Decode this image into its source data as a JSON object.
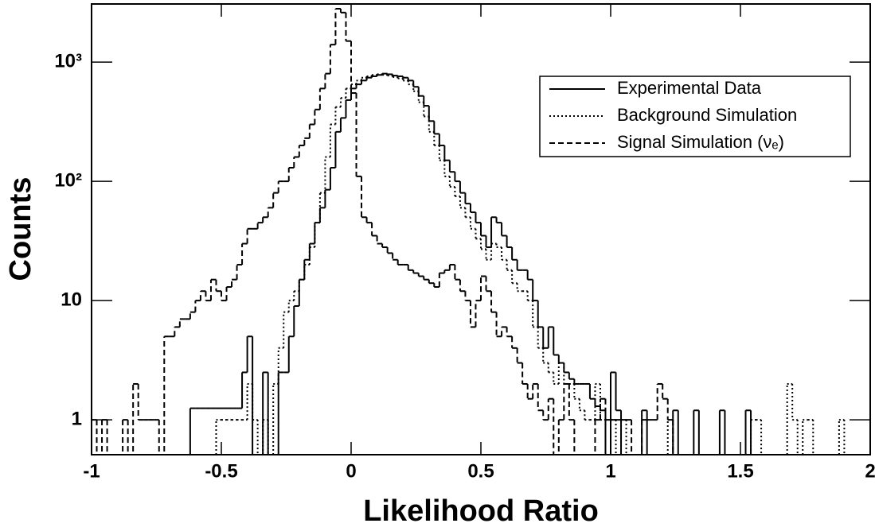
{
  "chart_data": {
    "type": "histogram",
    "xlabel": "Likelihood Ratio",
    "ylabel": "Counts",
    "log_y": true,
    "legend": "upper right",
    "xlim": [
      -1,
      2
    ],
    "ylim": [
      0.51,
      3070
    ],
    "xticks": [
      -1,
      -0.5,
      0,
      0.5,
      1,
      1.5,
      2
    ],
    "yticks": [
      1,
      10,
      {
        "value": 100,
        "label": "10²"
      },
      {
        "value": 1000,
        "label": "10³"
      }
    ],
    "bins": [
      -1,
      -0.98,
      -0.96,
      -0.94,
      -0.92,
      -0.9,
      -0.88,
      -0.86,
      -0.84,
      -0.82,
      -0.8,
      -0.78,
      -0.76,
      -0.74,
      -0.72,
      -0.7,
      -0.68,
      -0.66,
      -0.64,
      -0.62,
      -0.6,
      -0.58,
      -0.56,
      -0.54,
      -0.52,
      -0.5,
      -0.48,
      -0.46,
      -0.44,
      -0.42,
      -0.4,
      -0.38,
      -0.36,
      -0.34,
      -0.32,
      -0.3,
      -0.28,
      -0.26,
      -0.24,
      -0.22,
      -0.2,
      -0.18,
      -0.16,
      -0.14,
      -0.12,
      -0.1,
      -0.08,
      -0.06,
      -0.04,
      -0.02,
      0,
      0.02,
      0.04,
      0.06,
      0.08,
      0.1,
      0.12,
      0.14,
      0.16,
      0.18,
      0.2,
      0.22,
      0.24,
      0.26,
      0.28,
      0.3,
      0.32,
      0.34,
      0.36,
      0.38,
      0.4,
      0.42,
      0.44,
      0.46,
      0.48,
      0.5,
      0.52,
      0.54,
      0.56,
      0.58,
      0.6,
      0.62,
      0.64,
      0.66,
      0.68,
      0.7,
      0.72,
      0.74,
      0.76,
      0.78,
      0.8,
      0.82,
      0.84,
      0.86,
      0.88,
      0.9,
      0.92,
      0.94,
      0.96,
      0.98,
      1,
      1.02,
      1.04,
      1.06,
      1.08,
      1.1,
      1.12,
      1.14,
      1.16,
      1.18,
      1.2,
      1.22,
      1.24,
      1.26,
      1.28,
      1.3,
      1.32,
      1.34,
      1.36,
      1.38,
      1.4,
      1.42,
      1.44,
      1.46,
      1.48,
      1.5,
      1.52,
      1.54,
      1.56,
      1.58,
      1.6,
      1.62,
      1.64,
      1.66,
      1.68,
      1.7,
      1.72,
      1.74,
      1.76,
      1.78,
      1.8,
      1.82,
      1.84,
      1.86,
      1.88,
      1.9,
      1.92,
      1.94,
      1.96,
      1.98,
      2
    ],
    "series": [
      {
        "name": "Experimental Data",
        "color": "#000000",
        "linestyle": "solid",
        "values": [
          0,
          0,
          0,
          0,
          0,
          0,
          0,
          0,
          0,
          0,
          0,
          0,
          0,
          0,
          0,
          0,
          0,
          0,
          0,
          1.25,
          1.25,
          1.25,
          1.25,
          1.25,
          1.25,
          1.25,
          1.25,
          1.25,
          1.25,
          2.5,
          5,
          0,
          0,
          2.5,
          0,
          0,
          2.5,
          2.5,
          5,
          9,
          15,
          22,
          30,
          45,
          60,
          85,
          130,
          260,
          340,
          480,
          600,
          650,
          700,
          740,
          760,
          780,
          800,
          790,
          770,
          760,
          740,
          700,
          620,
          520,
          430,
          320,
          250,
          200,
          150,
          120,
          100,
          80,
          65,
          55,
          45,
          35,
          28,
          50,
          45,
          35,
          28,
          22,
          18,
          18,
          15,
          10,
          6,
          4,
          6,
          3.5,
          3,
          2.5,
          2.2,
          2,
          2,
          2,
          1.5,
          1.3,
          1.2,
          0,
          2.5,
          1.2,
          0,
          0,
          0,
          0,
          1.2,
          0,
          0,
          0,
          0,
          0,
          1.2,
          0,
          0,
          0,
          1.2,
          0,
          0,
          0,
          0,
          1.2,
          0,
          0,
          0,
          0,
          1.2,
          0,
          0,
          0,
          0,
          0,
          0,
          0,
          0,
          0,
          0,
          0,
          0,
          0,
          0,
          0,
          0,
          0,
          0,
          0,
          0,
          0,
          0,
          0
        ]
      },
      {
        "name": "Background Simulation",
        "color": "#000000",
        "linestyle": "dotted",
        "values": [
          0,
          0,
          0,
          0,
          0,
          0,
          0,
          0,
          0,
          0,
          0,
          0,
          0,
          0,
          0,
          0,
          0,
          0,
          0,
          0,
          0,
          0,
          0,
          0,
          1,
          1,
          1,
          1,
          1,
          1,
          2,
          1,
          0,
          1,
          0,
          2,
          4,
          8,
          10,
          12,
          15,
          20,
          28,
          45,
          80,
          160,
          300,
          420,
          500,
          600,
          650,
          700,
          740,
          760,
          780,
          790,
          780,
          770,
          750,
          730,
          700,
          650,
          570,
          460,
          350,
          260,
          200,
          150,
          110,
          90,
          75,
          60,
          50,
          40,
          33,
          27,
          22,
          30,
          28,
          22,
          18,
          14,
          12,
          12,
          10,
          6,
          4,
          3,
          2.5,
          2,
          3,
          2,
          2,
          1.5,
          1.2,
          1,
          1,
          2,
          1,
          0,
          1,
          0,
          1,
          0,
          0,
          0,
          0,
          0,
          0,
          0,
          0,
          1,
          0,
          0,
          0,
          0,
          0,
          0,
          0,
          0,
          0,
          0,
          0,
          0,
          0,
          0,
          0,
          1,
          1,
          0,
          0,
          0,
          0,
          0,
          2,
          1,
          0,
          1,
          1,
          0,
          0,
          0,
          0,
          0,
          1,
          0,
          0,
          0,
          0,
          0
        ]
      },
      {
        "name": "Signal Simulation (νₑ)",
        "color": "#000000",
        "linestyle": "dashed",
        "values": [
          1,
          0,
          1,
          0,
          0,
          0,
          1,
          0,
          2,
          1,
          1,
          1,
          1,
          0,
          5,
          5,
          6,
          7,
          7,
          8,
          10,
          12,
          10,
          15,
          12,
          10,
          13,
          15,
          20,
          30,
          40,
          40,
          45,
          50,
          60,
          80,
          100,
          100,
          130,
          160,
          200,
          230,
          300,
          400,
          600,
          800,
          1400,
          2800,
          2600,
          1500,
          550,
          110,
          50,
          45,
          35,
          30,
          28,
          25,
          22,
          20,
          20,
          18,
          17,
          16,
          15,
          14,
          13,
          17,
          18,
          20,
          15,
          12,
          10,
          6,
          10,
          16,
          12,
          8,
          5,
          6,
          5,
          4,
          3,
          2,
          1.5,
          2,
          1.2,
          1,
          1.5,
          0,
          1,
          2,
          1,
          0,
          0,
          0,
          0,
          1,
          1.5,
          1,
          1,
          1,
          1,
          1,
          0,
          0,
          1,
          1,
          1,
          2,
          1.5,
          1,
          0,
          0,
          0,
          0,
          0,
          0,
          0,
          0,
          0,
          0,
          0,
          0,
          0,
          0,
          0,
          0,
          0,
          0,
          0,
          0,
          0,
          0,
          0,
          0,
          0,
          0,
          0,
          0,
          0,
          0,
          0,
          0,
          0,
          0,
          0,
          0,
          0,
          0
        ]
      }
    ]
  }
}
